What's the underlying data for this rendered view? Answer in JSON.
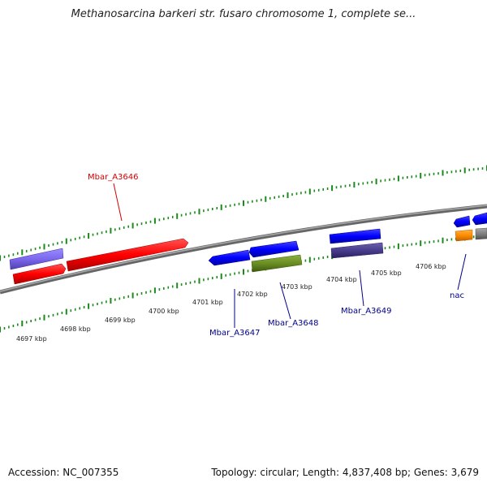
{
  "title": "Methanosarcina barkeri str. fusaro chromosome 1, complete se...",
  "footer": {
    "accession": "Accession: NC_007355",
    "summary": "Topology: circular; Length: 4,837,408 bp; Genes: 3,679"
  },
  "ticks": [
    {
      "label": "4697 kbp"
    },
    {
      "label": "4698 kbp"
    },
    {
      "label": "4699 kbp"
    },
    {
      "label": "4700 kbp"
    },
    {
      "label": "4701 kbp"
    },
    {
      "label": "4702 kbp"
    },
    {
      "label": "4703 kbp"
    },
    {
      "label": "4704 kbp"
    },
    {
      "label": "4705 kbp"
    },
    {
      "label": "4706 kbp"
    }
  ],
  "genes": [
    {
      "label": "Mbar_A3646",
      "color": "#d40000"
    },
    {
      "label": "Mbar_A3647",
      "color": "#00008b"
    },
    {
      "label": "Mbar_A3648",
      "color": "#00008b"
    },
    {
      "label": "Mbar_A3649",
      "color": "#00008b"
    },
    {
      "label": "nac",
      "color": "#00008b"
    }
  ],
  "colors": {
    "backbone": "#888888",
    "ticks": "#1a8a1a",
    "cds_forward": "#ff0000",
    "cds_blue": "#0000ff",
    "purple": "#7b68ee",
    "olive": "#6b8e23",
    "dark_slate": "#483d8b",
    "orange": "#ff8c00",
    "gray": "#808080"
  }
}
